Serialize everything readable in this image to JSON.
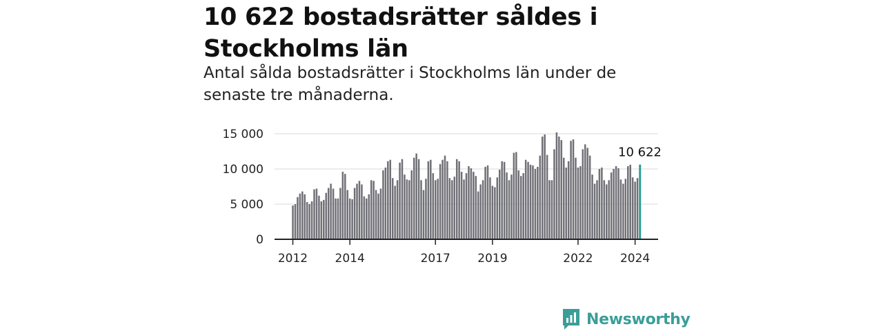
{
  "header": {
    "title": "10 622 bostadsrätter såldes i Stockholms län",
    "subtitle": "Antal sålda bostadsrätter i Stockholms län under de senaste tre månaderna."
  },
  "brand": {
    "name": "Newsworthy",
    "logo_icon": "newsworthy-logo-icon",
    "color": "#3a9e98"
  },
  "chart_data": {
    "type": "bar",
    "x_tick_labels": [
      "2012",
      "2014",
      "2017",
      "2019",
      "2022",
      "2024"
    ],
    "y_tick_labels": [
      "0",
      "5 000",
      "10 000",
      "15 000"
    ],
    "ylim": [
      0,
      15000
    ],
    "grid": true,
    "bar_color": "#6f6f76",
    "highlight_color": "#2a9d96",
    "highlight_label": "10 622",
    "series": [
      {
        "values": [
          4800,
          5000,
          6000,
          6500,
          6800,
          6400,
          5300,
          5000,
          5400,
          7100,
          7200,
          6200,
          5400,
          5600,
          6600,
          7300,
          7900,
          7200,
          5800,
          5800,
          7300,
          9600,
          9300,
          7000,
          5800,
          5700,
          7300,
          7900,
          8300,
          7800,
          6100,
          5800,
          6400,
          8400,
          8300,
          7000,
          6500,
          7200,
          9800,
          10200,
          11100,
          11300,
          8700,
          7600,
          8400,
          10900,
          11400,
          9200,
          8500,
          8400,
          9800,
          11600,
          12200,
          11400,
          8400,
          7000,
          8600,
          11100,
          11300,
          9400,
          8400,
          8600,
          10700,
          11300,
          11900,
          11100,
          8700,
          8400,
          8900,
          11400,
          11100,
          9600,
          8500,
          9400,
          10400,
          10100,
          9600,
          9000,
          6800,
          7800,
          8400,
          10300,
          10500,
          8800,
          7600,
          7400,
          8800,
          9900,
          11100,
          11000,
          9500,
          8400,
          9200,
          12300,
          12400,
          9800,
          9000,
          9400,
          11300,
          11000,
          10600,
          10500,
          10000,
          10300,
          11900,
          14600,
          14900,
          12000,
          8400,
          8400,
          12800,
          15200,
          14600,
          14100,
          11600,
          10200,
          11100,
          14000,
          14200,
          11600,
          10200,
          10400,
          12800,
          13500,
          13000,
          11900,
          9200,
          7900,
          8400,
          10000,
          10200,
          8400,
          7800,
          8400,
          9500,
          10000,
          10400,
          10100,
          8500,
          7900,
          8600,
          10400,
          10600,
          8800,
          8200,
          8700,
          10622
        ]
      }
    ]
  }
}
